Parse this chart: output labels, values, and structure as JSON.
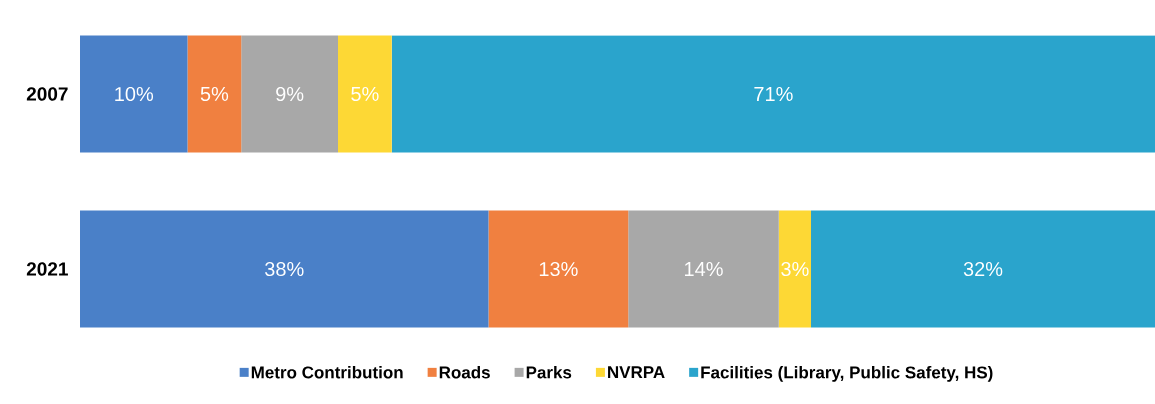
{
  "chart_data": {
    "type": "bar",
    "orientation": "horizontal",
    "stacked": true,
    "categories": [
      "2007",
      "2021"
    ],
    "xlim": [
      0,
      100
    ],
    "tick_labels": "y",
    "legend": "bottom",
    "grid": false,
    "series": [
      {
        "name": "Metro Contribution",
        "color": "#4a80c8",
        "values": [
          10,
          38
        ],
        "value_labels": [
          "10%",
          "38%"
        ]
      },
      {
        "name": "Roads",
        "color": "#f08040",
        "values": [
          5,
          13
        ],
        "value_labels": [
          "5%",
          "13%"
        ]
      },
      {
        "name": "Parks",
        "color": "#a8a8a8",
        "values": [
          9,
          14
        ],
        "value_labels": [
          "9%",
          "14%"
        ]
      },
      {
        "name": "NVRPA",
        "color": "#fdd835",
        "values": [
          5,
          3
        ],
        "value_labels": [
          "5%",
          "3%"
        ]
      },
      {
        "name": "Facilities (Library, Public Safety, HS)",
        "color": "#2aa4cc",
        "values": [
          71,
          32
        ],
        "value_labels": [
          "71%",
          "32%"
        ]
      }
    ]
  }
}
